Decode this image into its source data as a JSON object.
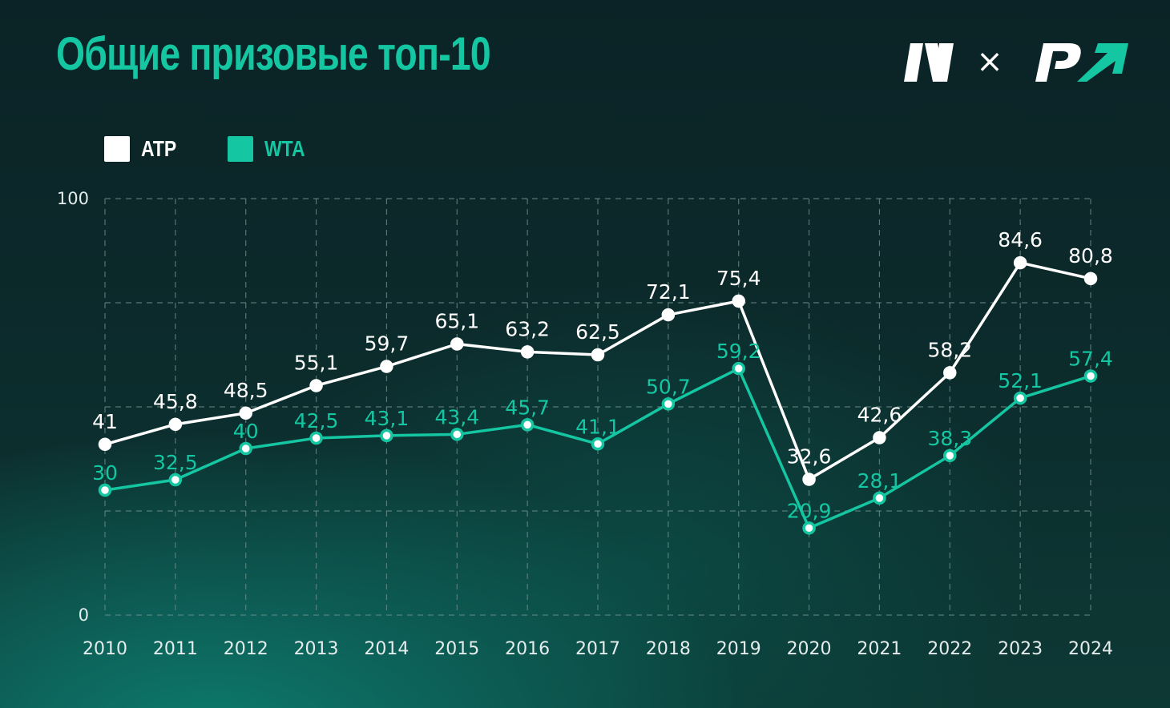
{
  "title": "Общие призовые топ-10",
  "logo_separator": "×",
  "colors": {
    "atp": "#ffffff",
    "wta": "#14c6a2",
    "title": "#14c6a2",
    "grid": "#6f8f8c",
    "axis_text": "#e4ecec"
  },
  "legend": [
    {
      "label": "ATP",
      "color": "#ffffff"
    },
    {
      "label": "WTA",
      "color": "#14c6a2"
    }
  ],
  "chart_data": {
    "type": "line",
    "title": "Общие призовые топ-10",
    "xlabel": "",
    "ylabel": "",
    "ylim": [
      0,
      100
    ],
    "y_ticks": [
      0,
      100
    ],
    "grid": true,
    "legend_position": "top-left",
    "x": [
      "2010",
      "2011",
      "2012",
      "2013",
      "2014",
      "2015",
      "2016",
      "2017",
      "2018",
      "2019",
      "2020",
      "2021",
      "2022",
      "2023",
      "2024"
    ],
    "series": [
      {
        "name": "ATP",
        "values": [
          41,
          45.8,
          48.5,
          55.1,
          59.7,
          65.1,
          63.2,
          62.5,
          72.1,
          75.4,
          32.6,
          42.6,
          58.2,
          84.6,
          80.8
        ],
        "labels": [
          "41",
          "45,8",
          "48,5",
          "55,1",
          "59,7",
          "65,1",
          "63,2",
          "62,5",
          "72,1",
          "75,4",
          "32,6",
          "42,6",
          "58,2",
          "84,6",
          "80,8"
        ]
      },
      {
        "name": "WTA",
        "values": [
          30,
          32.5,
          40,
          42.5,
          43.1,
          43.4,
          45.7,
          41.1,
          50.7,
          59.2,
          20.9,
          28.1,
          38.3,
          52.1,
          57.4
        ],
        "labels": [
          "30",
          "32,5",
          "40",
          "42,5",
          "43,1",
          "43,4",
          "45,7",
          "41,1",
          "50,7",
          "59,2",
          "20,9",
          "28,1",
          "38,3",
          "52,1",
          "57,4"
        ]
      }
    ]
  }
}
